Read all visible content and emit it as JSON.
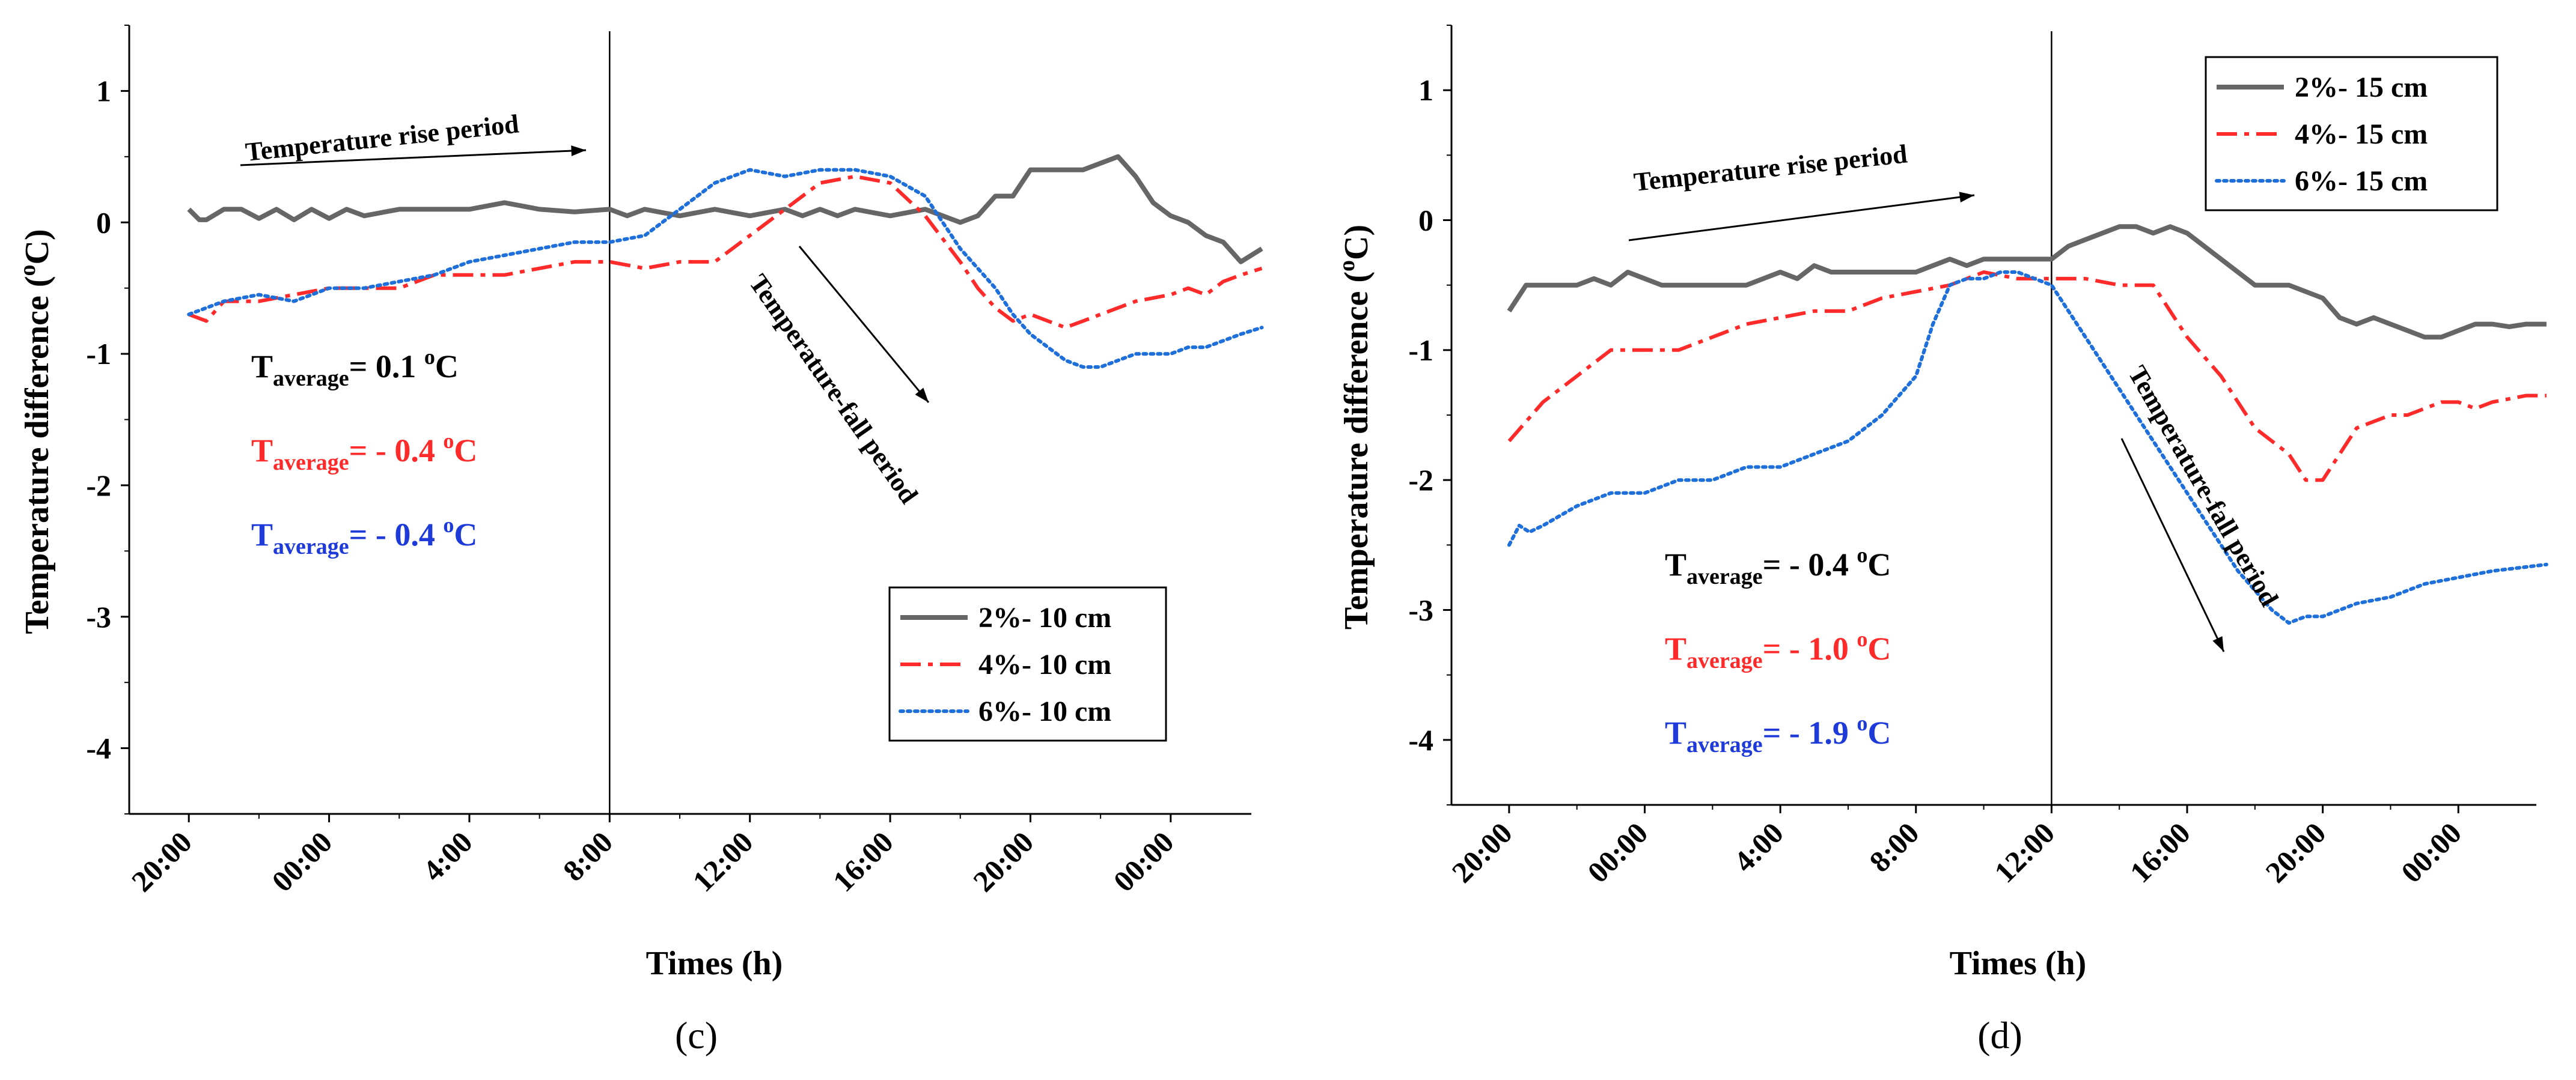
{
  "chart_data": [
    {
      "panel_label": "(c)",
      "type": "line",
      "xlabel": "Times (h)",
      "ylabel": "Temperature difference (°C)",
      "ylabel_parts": {
        "main": "Temperature difference (",
        "sup": "o",
        "unit": "C)"
      },
      "x_tick_labels": [
        "20:00",
        "00:00",
        "4:00",
        "8:00",
        "12:00",
        "16:00",
        "20:00",
        "00:00"
      ],
      "x_range_hours": [
        -1.7,
        30.3
      ],
      "y_ticks": [
        1,
        0,
        -1,
        -2,
        -3,
        -4
      ],
      "y_tick_labels": [
        "1",
        "0",
        "-1",
        "-2",
        "-3",
        "-4"
      ],
      "ylim": [
        -4.5,
        1.5
      ],
      "divider_x": 12,
      "legend_position": "bottom-right",
      "series": [
        {
          "name": "2%- 10 cm",
          "color": "#666666",
          "dash": "solid",
          "x": [
            0,
            0.3,
            0.5,
            1,
            1.5,
            2,
            2.5,
            3,
            3.5,
            4,
            4.5,
            5,
            6,
            7,
            8,
            9,
            10,
            11,
            12,
            12.5,
            13,
            14,
            15,
            16,
            17,
            17.5,
            18,
            18.5,
            19,
            20,
            21,
            22,
            22.5,
            23,
            23.5,
            24,
            24.5,
            25,
            25.5,
            26,
            26.5,
            27,
            27.5,
            28,
            28.5,
            29,
            29.5,
            30,
            30.6
          ],
          "y": [
            0.1,
            0.02,
            0.02,
            0.1,
            0.1,
            0.03,
            0.1,
            0.02,
            0.1,
            0.03,
            0.1,
            0.05,
            0.1,
            0.1,
            0.1,
            0.15,
            0.1,
            0.08,
            0.1,
            0.05,
            0.1,
            0.05,
            0.1,
            0.05,
            0.1,
            0.05,
            0.1,
            0.05,
            0.1,
            0.05,
            0.1,
            0,
            0.05,
            0.2,
            0.2,
            0.4,
            0.4,
            0.4,
            0.4,
            0.45,
            0.5,
            0.35,
            0.15,
            0.05,
            0,
            -0.1,
            -0.15,
            -0.3,
            -0.2
          ]
        },
        {
          "name": "4%- 10 cm",
          "color": "#ff2a2a",
          "dash": "dashdot",
          "x": [
            0,
            0.5,
            1,
            2,
            3,
            4,
            5,
            6,
            7,
            8,
            9,
            10,
            11,
            12,
            13,
            14,
            15,
            16,
            17,
            18,
            19,
            20,
            21,
            22,
            22.5,
            23,
            23.5,
            24,
            24.5,
            25,
            25.5,
            26,
            27,
            28,
            28.5,
            29,
            29.5,
            30,
            30.6
          ],
          "y": [
            -0.7,
            -0.75,
            -0.6,
            -0.6,
            -0.55,
            -0.5,
            -0.5,
            -0.5,
            -0.4,
            -0.4,
            -0.4,
            -0.35,
            -0.3,
            -0.3,
            -0.35,
            -0.3,
            -0.3,
            -0.1,
            0.1,
            0.3,
            0.35,
            0.3,
            0.05,
            -0.3,
            -0.5,
            -0.65,
            -0.75,
            -0.7,
            -0.75,
            -0.8,
            -0.75,
            -0.7,
            -0.6,
            -0.55,
            -0.5,
            -0.55,
            -0.45,
            -0.4,
            -0.35
          ]
        },
        {
          "name": "6%- 10 cm",
          "color": "#1e6fd9",
          "dash": "dot",
          "x": [
            0,
            0.5,
            1,
            2,
            3,
            4,
            5,
            6,
            7,
            8,
            9,
            10,
            11,
            12,
            13,
            13.5,
            14,
            14.5,
            15,
            16,
            17,
            18,
            19,
            20,
            21,
            21.5,
            22,
            22.5,
            23,
            23.5,
            24,
            24.5,
            25,
            25.5,
            26,
            26.5,
            27,
            27.5,
            28,
            28.5,
            29,
            29.5,
            30,
            30.6
          ],
          "y": [
            -0.7,
            -0.65,
            -0.6,
            -0.55,
            -0.6,
            -0.5,
            -0.5,
            -0.45,
            -0.4,
            -0.3,
            -0.25,
            -0.2,
            -0.15,
            -0.15,
            -0.1,
            0,
            0.1,
            0.2,
            0.3,
            0.4,
            0.35,
            0.4,
            0.4,
            0.35,
            0.2,
            0,
            -0.2,
            -0.35,
            -0.5,
            -0.7,
            -0.85,
            -0.95,
            -1.05,
            -1.1,
            -1.1,
            -1.05,
            -1.0,
            -1.0,
            -1.0,
            -0.95,
            -0.95,
            -0.9,
            -0.85,
            -0.8
          ]
        }
      ],
      "annotations": {
        "rise": "Temperature rise period",
        "fall": "Temperature-fall period"
      },
      "averages": [
        {
          "base": "T",
          "sub": "average",
          "text": "=  0.1 ",
          "sup": "o",
          "unit": "C",
          "color": "#000000"
        },
        {
          "base": "T",
          "sub": "average",
          "text": "= - 0.4 ",
          "sup": "o",
          "unit": "C",
          "color": "#ff2a2a"
        },
        {
          "base": "T",
          "sub": "average",
          "text": "= - 0.4 ",
          "sup": "o",
          "unit": "C",
          "color": "#1e3bd9"
        }
      ]
    },
    {
      "panel_label": "(d)",
      "type": "line",
      "xlabel": "Times (h)",
      "ylabel": "Temperature difference (°C)",
      "ylabel_parts": {
        "main": "Temperature difference (",
        "sup": "o",
        "unit": "C)"
      },
      "x_tick_labels": [
        "20:00",
        "00:00",
        "4:00",
        "8:00",
        "12:00",
        "16:00",
        "20:00",
        "00:00"
      ],
      "x_range_hours": [
        -1.7,
        30.3
      ],
      "y_ticks": [
        1,
        0,
        -1,
        -2,
        -3,
        -4
      ],
      "y_tick_labels": [
        "1",
        "0",
        "-1",
        "-2",
        "-3",
        "-4"
      ],
      "ylim": [
        -4.5,
        1.5
      ],
      "divider_x": 16,
      "legend_position": "top-right",
      "series": [
        {
          "name": "2%- 15 cm",
          "color": "#666666",
          "dash": "solid",
          "x": [
            0,
            0.5,
            1,
            2,
            2.5,
            3,
            3.5,
            4,
            4.5,
            5,
            6,
            7,
            8,
            8.5,
            9,
            9.5,
            10,
            11,
            12,
            13,
            13.5,
            14,
            14.5,
            15,
            16,
            16.5,
            17,
            17.5,
            18,
            18.5,
            19,
            19.5,
            20,
            21,
            22,
            23,
            24,
            24.5,
            25,
            25.5,
            26,
            26.5,
            27,
            27.5,
            28,
            28.5,
            29,
            29.5,
            30,
            30.6
          ],
          "y": [
            -0.7,
            -0.5,
            -0.5,
            -0.5,
            -0.45,
            -0.5,
            -0.4,
            -0.45,
            -0.5,
            -0.5,
            -0.5,
            -0.5,
            -0.4,
            -0.45,
            -0.35,
            -0.4,
            -0.4,
            -0.4,
            -0.4,
            -0.3,
            -0.35,
            -0.3,
            -0.3,
            -0.3,
            -0.3,
            -0.2,
            -0.15,
            -0.1,
            -0.05,
            -0.05,
            -0.1,
            -0.05,
            -0.1,
            -0.3,
            -0.5,
            -0.5,
            -0.6,
            -0.75,
            -0.8,
            -0.75,
            -0.8,
            -0.85,
            -0.9,
            -0.9,
            -0.85,
            -0.8,
            -0.8,
            -0.82,
            -0.8,
            -0.8
          ]
        },
        {
          "name": "4%- 15 cm",
          "color": "#ff2a2a",
          "dash": "dashdot",
          "x": [
            0,
            1,
            2,
            3,
            4,
            5,
            6,
            7,
            8,
            9,
            10,
            11,
            12,
            13,
            14,
            15,
            16,
            17,
            18,
            19,
            20,
            21,
            22,
            23,
            23.5,
            24,
            24.5,
            25,
            25.5,
            26,
            26.5,
            27,
            27.5,
            28,
            28.5,
            29,
            30,
            30.6
          ],
          "y": [
            -1.7,
            -1.4,
            -1.2,
            -1.0,
            -1.0,
            -1.0,
            -0.9,
            -0.8,
            -0.75,
            -0.7,
            -0.7,
            -0.6,
            -0.55,
            -0.5,
            -0.4,
            -0.45,
            -0.45,
            -0.45,
            -0.5,
            -0.5,
            -0.9,
            -1.2,
            -1.6,
            -1.8,
            -2.0,
            -2.0,
            -1.8,
            -1.6,
            -1.55,
            -1.5,
            -1.5,
            -1.45,
            -1.4,
            -1.4,
            -1.45,
            -1.4,
            -1.35,
            -1.35
          ]
        },
        {
          "name": "6%- 15 cm",
          "color": "#1e6fd9",
          "dash": "dot",
          "x": [
            0,
            0.3,
            0.6,
            1,
            2,
            3,
            4,
            5,
            6,
            7,
            8,
            9,
            10,
            11,
            12,
            12.5,
            13,
            13.5,
            14,
            14.5,
            15,
            15.5,
            16,
            16.5,
            17,
            17.5,
            18,
            18.5,
            19,
            19.5,
            20,
            20.5,
            21,
            21.5,
            22,
            22.5,
            23,
            23.5,
            24,
            24.5,
            25,
            26,
            27,
            28,
            29,
            30.6
          ],
          "y": [
            -2.5,
            -2.35,
            -2.4,
            -2.35,
            -2.2,
            -2.1,
            -2.1,
            -2.0,
            -2.0,
            -1.9,
            -1.9,
            -1.8,
            -1.7,
            -1.5,
            -1.2,
            -0.8,
            -0.5,
            -0.45,
            -0.45,
            -0.4,
            -0.4,
            -0.45,
            -0.5,
            -0.7,
            -0.9,
            -1.1,
            -1.3,
            -1.5,
            -1.7,
            -1.9,
            -2.1,
            -2.3,
            -2.5,
            -2.7,
            -2.85,
            -3.0,
            -3.1,
            -3.05,
            -3.05,
            -3.0,
            -2.95,
            -2.9,
            -2.8,
            -2.75,
            -2.7,
            -2.65
          ]
        }
      ],
      "annotations": {
        "rise": "Temperature rise period",
        "fall": "Temperature-fall period"
      },
      "averages": [
        {
          "base": "T",
          "sub": "average",
          "text": "=  - 0.4 ",
          "sup": "o",
          "unit": "C",
          "color": "#000000"
        },
        {
          "base": "T",
          "sub": "average",
          "text": "= - 1.0 ",
          "sup": "o",
          "unit": "C",
          "color": "#ff2a2a"
        },
        {
          "base": "T",
          "sub": "average",
          "text": "= - 1.9 ",
          "sup": "o",
          "unit": "C",
          "color": "#1e3bd9"
        }
      ]
    }
  ]
}
